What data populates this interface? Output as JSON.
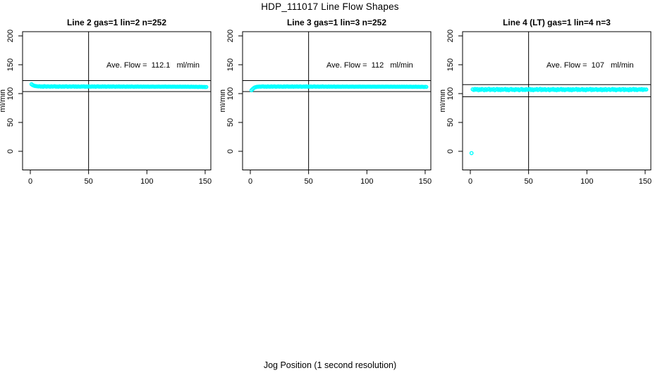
{
  "figure": {
    "title": "HDP_111017  Line Flow Shapes",
    "xlabel": "Jog Position (1 second resolution)",
    "background_color": "#ffffff",
    "point_color": "#00ffff",
    "line_color": "#000000"
  },
  "chart_data": {
    "type": "scatter",
    "title": "HDP_111017  Line Flow Shapes",
    "xlabel": "Jog Position (1 second resolution)",
    "ylabel": "ml/min",
    "marker": "open-circle",
    "marker_color": "#00ffff",
    "x_ticks": [
      0,
      50,
      100,
      150
    ],
    "y_ticks": [
      0,
      50,
      100,
      150,
      200
    ],
    "xlim": [
      -6.7,
      155
    ],
    "ylim": [
      -32,
      207
    ],
    "grid": false,
    "panels": [
      {
        "title": "Line 2 gas=1 lin=2 n=252",
        "annotation": "Ave. Flow =  112.1   ml/min",
        "ave_flow_ml_min": 112.1,
        "n": 252,
        "ref_lines_y": [
          122.5,
          103.5
        ],
        "vline_x": 50,
        "x_start": 1,
        "x_step": 1,
        "y": [
          116.2,
          114.8,
          113.8,
          113.2,
          112.9,
          112.7,
          112.5,
          112.8,
          112.1,
          112.5,
          111.8,
          112.9,
          112.4,
          112.0,
          112.7,
          112.3,
          111.9,
          112.6,
          112.1,
          112.4,
          112.8,
          111.9,
          112.3,
          111.8,
          112.6,
          112.2,
          111.9,
          112.5,
          112.0,
          112.4,
          112.7,
          111.8,
          112.2,
          112.5,
          111.9,
          112.3,
          112.6,
          112.0,
          112.4,
          111.8,
          112.5,
          112.1,
          111.9,
          112.4,
          112.2,
          112.6,
          111.8,
          112.3,
          112.0,
          112.5,
          112.2,
          111.9,
          112.4,
          112.1,
          112.5,
          111.8,
          112.3,
          112.6,
          112.0,
          112.2,
          111.9,
          112.4,
          112.1,
          112.5,
          111.8,
          112.2,
          112.4,
          111.9,
          112.3,
          112.0,
          112.4,
          112.2,
          111.8,
          112.3,
          112.1,
          112.4,
          111.9,
          112.2,
          112.0,
          112.3,
          112.1,
          111.8,
          112.3,
          112.0,
          112.2,
          111.9,
          112.3,
          112.1,
          111.8,
          112.2,
          112.0,
          112.3,
          111.9,
          112.1,
          112.2,
          111.8,
          112.2,
          112.0,
          112.1,
          111.9,
          112.2,
          111.8,
          112.1,
          111.9,
          112.2,
          112.0,
          111.8,
          112.1,
          111.9,
          112.2,
          112.0,
          111.8,
          112.1,
          111.9,
          112.0,
          112.2,
          111.8,
          112.0,
          111.9,
          112.1,
          111.8,
          112.0,
          111.9,
          112.1,
          111.7,
          112.0,
          111.8,
          112.0,
          111.9,
          111.7,
          112.0,
          111.8,
          111.9,
          111.7,
          111.9,
          111.8,
          111.6,
          111.9,
          111.7,
          111.8,
          111.6,
          111.8,
          111.7,
          111.5,
          111.8,
          111.6,
          111.7,
          111.5,
          111.6,
          111.4,
          111.5
        ]
      },
      {
        "title": "Line 3 gas=1 lin=3 n=252",
        "annotation": "Ave. Flow =  112   ml/min",
        "ave_flow_ml_min": 112,
        "n": 252,
        "ref_lines_y": [
          122.5,
          103.5
        ],
        "vline_x": 50,
        "x_start": 1,
        "x_step": 1,
        "y": [
          105.8,
          107.8,
          109.6,
          110.8,
          111.4,
          111.8,
          112.0,
          112.2,
          112.0,
          112.3,
          112.4,
          111.9,
          112.2,
          111.8,
          112.5,
          112.1,
          111.9,
          112.4,
          112.0,
          112.3,
          112.5,
          111.8,
          112.2,
          112.4,
          111.9,
          112.3,
          112.1,
          111.8,
          112.4,
          112.0,
          112.3,
          112.5,
          111.9,
          112.2,
          112.0,
          112.4,
          111.8,
          112.3,
          112.1,
          112.4,
          111.9,
          112.2,
          112.5,
          111.8,
          112.1,
          112.3,
          112.0,
          112.4,
          111.9,
          112.2,
          112.0,
          112.3,
          111.8,
          112.2,
          112.4,
          111.9,
          112.1,
          112.3,
          111.8,
          112.2,
          112.0,
          112.4,
          111.9,
          112.1,
          112.2,
          111.8,
          112.3,
          112.0,
          112.2,
          111.9,
          112.1,
          112.3,
          111.8,
          112.0,
          112.2,
          111.9,
          112.1,
          111.8,
          112.2,
          112.0,
          112.1,
          111.9,
          112.2,
          111.8,
          112.0,
          112.1,
          111.9,
          112.2,
          111.8,
          112.0,
          112.1,
          111.9,
          112.0,
          112.2,
          111.8,
          112.0,
          111.9,
          112.1,
          111.8,
          112.0,
          112.1,
          111.9,
          112.0,
          111.8,
          112.1,
          111.9,
          112.0,
          111.8,
          112.0,
          111.9,
          112.1,
          111.8,
          111.9,
          112.0,
          111.8,
          112.0,
          111.9,
          112.1,
          111.8,
          111.9,
          112.0,
          111.8,
          111.9,
          112.0,
          111.7,
          111.9,
          111.8,
          112.0,
          111.7,
          111.9,
          111.8,
          111.9,
          111.7,
          111.9,
          111.8,
          111.7,
          111.9,
          111.8,
          111.6,
          111.8,
          111.7,
          111.9,
          111.6,
          111.8,
          111.7,
          111.6,
          111.8,
          111.7,
          111.5,
          111.7,
          111.6
        ]
      },
      {
        "title": "Line 4 (LT) gas=1 lin=4 n=3",
        "annotation": "Ave. Flow =  107   ml/min",
        "ave_flow_ml_min": 107,
        "n": 3,
        "ref_lines_y": [
          115.5,
          94.5
        ],
        "vline_x": 50,
        "x_start": 1,
        "x_step": 1,
        "y": [
          -3.2,
          107.5,
          106.2,
          108.1,
          106.8,
          107.9,
          105.9,
          107.4,
          106.5,
          108.0,
          107.2,
          105.8,
          107.8,
          106.4,
          107.5,
          108.2,
          106.1,
          107.3,
          106.7,
          107.9,
          105.9,
          107.1,
          108.0,
          106.3,
          107.6,
          106.0,
          107.8,
          106.6,
          107.2,
          108.1,
          106.2,
          107.5,
          105.9,
          107.3,
          108.0,
          106.5,
          107.1,
          106.0,
          107.7,
          106.8,
          107.4,
          105.8,
          107.2,
          108.1,
          106.4,
          107.0,
          106.2,
          107.8,
          106.6,
          107.3,
          108.0,
          106.1,
          107.5,
          105.9,
          107.2,
          106.7,
          107.9,
          106.3,
          107.1,
          108.2,
          106.0,
          107.4,
          106.5,
          107.8,
          106.2,
          107.0,
          107.6,
          105.9,
          107.3,
          106.8,
          108.0,
          106.4,
          107.2,
          105.8,
          107.7,
          106.5,
          107.1,
          108.1,
          106.3,
          107.5,
          106.0,
          107.3,
          106.9,
          107.8,
          106.2,
          107.4,
          105.9,
          107.6,
          106.6,
          107.2,
          108.0,
          106.1,
          107.5,
          106.4,
          107.0,
          107.9,
          106.3,
          107.2,
          105.8,
          107.6,
          106.7,
          107.3,
          108.1,
          106.0,
          107.4,
          106.5,
          107.1,
          107.8,
          106.2,
          107.0,
          106.6,
          107.7,
          105.9,
          107.3,
          106.4,
          107.9,
          106.1,
          107.2,
          107.6,
          106.3,
          107.0,
          108.0,
          106.5,
          107.4,
          105.8,
          107.1,
          106.8,
          107.7,
          106.2,
          107.3,
          107.9,
          106.0,
          107.5,
          106.6,
          107.1,
          105.9,
          107.8,
          106.4,
          107.2,
          108.0,
          106.3,
          107.6,
          106.1,
          107.0,
          107.4,
          106.7,
          107.9,
          106.2,
          107.3,
          106.9,
          107.1
        ]
      }
    ]
  }
}
